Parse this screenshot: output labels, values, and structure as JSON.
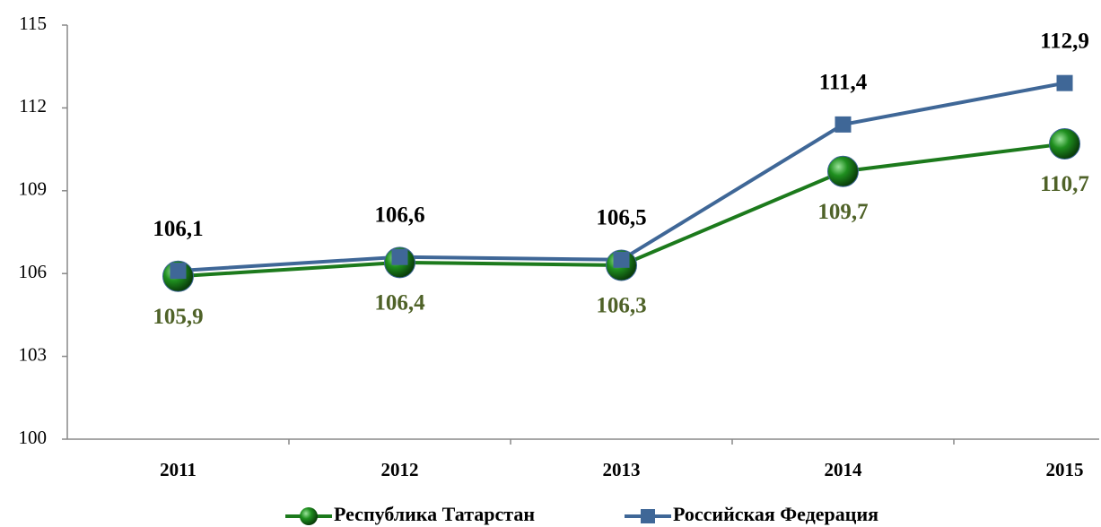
{
  "chart_data": {
    "type": "line",
    "categories": [
      "2011",
      "2012",
      "2013",
      "2014",
      "2015"
    ],
    "series": [
      {
        "name": "Республика Татарстан",
        "color": "#1c7a1c",
        "label_color": "#4f6228",
        "marker": "circle",
        "values": [
          105.9,
          106.4,
          106.3,
          109.7,
          110.7
        ],
        "value_labels": [
          "105,9",
          "106,4",
          "106,3",
          "109,7",
          "110,7"
        ]
      },
      {
        "name": "Российская Федерация",
        "color": "#3f6797",
        "label_color": "#000000",
        "marker": "square",
        "values": [
          106.1,
          106.6,
          106.5,
          111.4,
          112.9
        ],
        "value_labels": [
          "106,1",
          "106,6",
          "106,5",
          "111,4",
          "112,9"
        ]
      }
    ],
    "ylim": [
      100,
      115
    ],
    "yticks": [
      100,
      103,
      106,
      109,
      112,
      115
    ],
    "grid": false
  }
}
